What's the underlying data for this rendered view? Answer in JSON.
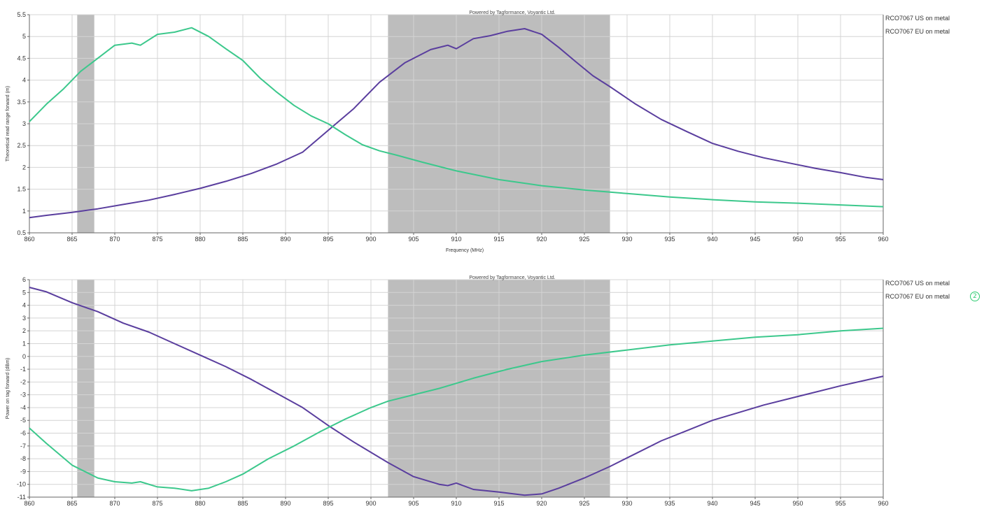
{
  "marker": "2",
  "colors": {
    "us": "#5a3e9e",
    "eu": "#3cc88c",
    "band": "#bdbdbd",
    "grid": "#d4d4d4",
    "axis": "#666666"
  },
  "chart_data": [
    {
      "type": "line",
      "title": "Powered by Tagformance, Voyantic Ltd.",
      "xlabel": "Frequency (MHz)",
      "ylabel": "Theoretical read range forward (m)",
      "xlim": [
        860,
        960
      ],
      "ylim": [
        0.5,
        5.5
      ],
      "xticks": [
        860,
        865,
        870,
        875,
        880,
        885,
        890,
        895,
        900,
        905,
        910,
        915,
        920,
        925,
        930,
        935,
        940,
        945,
        950,
        955,
        960
      ],
      "yticks": [
        0.5,
        1,
        1.5,
        2,
        2.5,
        3,
        3.5,
        4,
        4.5,
        5,
        5.5
      ],
      "grid": true,
      "legend_position": "right",
      "bands": [
        [
          865.6,
          867.6
        ],
        [
          902,
          928
        ]
      ],
      "series": [
        {
          "name": "RCO7067 US on metal",
          "color": "#5a3e9e",
          "x": [
            860,
            862,
            865,
            868,
            871,
            874,
            877,
            880,
            883,
            886,
            889,
            892,
            895,
            898,
            901,
            904,
            907,
            909,
            910,
            912,
            914,
            916,
            918,
            920,
            922,
            924,
            926,
            928,
            931,
            934,
            937,
            940,
            943,
            946,
            949,
            952,
            955,
            958,
            960
          ],
          "values": [
            0.85,
            0.9,
            0.97,
            1.05,
            1.15,
            1.25,
            1.38,
            1.52,
            1.68,
            1.86,
            2.08,
            2.35,
            2.85,
            3.35,
            3.95,
            4.4,
            4.7,
            4.8,
            4.72,
            4.95,
            5.02,
            5.12,
            5.18,
            5.05,
            4.75,
            4.42,
            4.1,
            3.85,
            3.45,
            3.1,
            2.82,
            2.55,
            2.37,
            2.22,
            2.1,
            1.98,
            1.88,
            1.77,
            1.72
          ]
        },
        {
          "name": "RCO7067 EU on metal",
          "color": "#3cc88c",
          "x": [
            860,
            862,
            864,
            866,
            868,
            870,
            872,
            873,
            875,
            877,
            879,
            881,
            883,
            885,
            887,
            889,
            891,
            893,
            895,
            897,
            899,
            901,
            903,
            906,
            910,
            915,
            920,
            925,
            930,
            935,
            940,
            945,
            950,
            955,
            960
          ],
          "values": [
            3.05,
            3.45,
            3.8,
            4.2,
            4.5,
            4.8,
            4.85,
            4.8,
            5.05,
            5.1,
            5.2,
            5.0,
            4.72,
            4.45,
            4.05,
            3.72,
            3.42,
            3.18,
            3.0,
            2.75,
            2.52,
            2.38,
            2.28,
            2.12,
            1.92,
            1.72,
            1.58,
            1.48,
            1.4,
            1.32,
            1.26,
            1.21,
            1.18,
            1.14,
            1.1
          ]
        }
      ]
    },
    {
      "type": "line",
      "title": "Powered by Tagformance, Voyantic Ltd.",
      "xlabel": "",
      "ylabel": "Power on tag forward (dBm)",
      "xlim": [
        860,
        960
      ],
      "ylim": [
        -11,
        6
      ],
      "xticks": [
        860,
        865,
        870,
        875,
        880,
        885,
        890,
        895,
        900,
        905,
        910,
        915,
        920,
        925,
        930,
        935,
        940,
        945,
        950,
        955,
        960
      ],
      "yticks": [
        -11,
        -10,
        -9,
        -8,
        -7,
        -6,
        -5,
        -4,
        -3,
        -2,
        -1,
        0,
        1,
        2,
        3,
        4,
        5,
        6
      ],
      "grid": true,
      "legend_position": "right",
      "bands": [
        [
          865.6,
          867.6
        ],
        [
          902,
          928
        ]
      ],
      "series": [
        {
          "name": "RCO7067 US on metal",
          "color": "#5a3e9e",
          "x": [
            860,
            862,
            865,
            868,
            871,
            874,
            877,
            880,
            883,
            886,
            889,
            892,
            895,
            898,
            902,
            905,
            908,
            909,
            910,
            912,
            915,
            918,
            920,
            922,
            925,
            928,
            931,
            934,
            937,
            940,
            943,
            946,
            949,
            952,
            955,
            958,
            960
          ],
          "values": [
            5.4,
            5.05,
            4.2,
            3.5,
            2.6,
            1.9,
            1.0,
            0.1,
            -0.8,
            -1.8,
            -2.9,
            -4.0,
            -5.4,
            -6.7,
            -8.3,
            -9.4,
            -10.0,
            -10.1,
            -9.9,
            -10.4,
            -10.6,
            -10.85,
            -10.75,
            -10.3,
            -9.5,
            -8.6,
            -7.6,
            -6.6,
            -5.8,
            -5.0,
            -4.4,
            -3.8,
            -3.3,
            -2.8,
            -2.3,
            -1.85,
            -1.55
          ]
        },
        {
          "name": "RCO7067 EU on metal",
          "color": "#3cc88c",
          "x": [
            860,
            862,
            865,
            868,
            870,
            872,
            873,
            875,
            877,
            879,
            881,
            883,
            885,
            888,
            891,
            894,
            897,
            900,
            902,
            905,
            908,
            912,
            916,
            920,
            925,
            930,
            935,
            940,
            945,
            950,
            955,
            960
          ],
          "values": [
            -5.6,
            -6.8,
            -8.5,
            -9.5,
            -9.8,
            -9.9,
            -9.8,
            -10.2,
            -10.3,
            -10.5,
            -10.3,
            -9.8,
            -9.2,
            -8.0,
            -7.0,
            -5.9,
            -4.9,
            -4.0,
            -3.5,
            -3.0,
            -2.5,
            -1.7,
            -1.0,
            -0.4,
            0.1,
            0.5,
            0.9,
            1.2,
            1.5,
            1.7,
            2.0,
            2.2
          ]
        }
      ]
    }
  ]
}
